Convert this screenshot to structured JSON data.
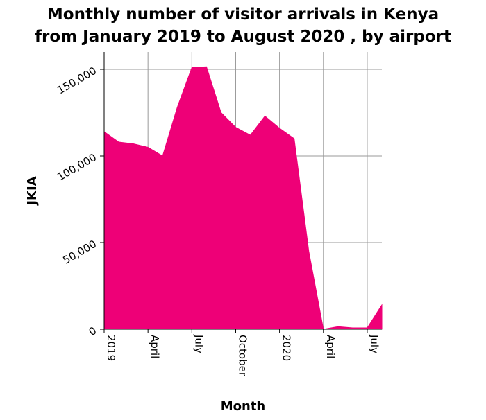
{
  "chart_data": {
    "type": "area",
    "title_lines": [
      "Monthly number of visitor arrivals in Kenya",
      "from January 2019 to August 2020 , by airport"
    ],
    "xlabel": "Month",
    "ylabel": "JKIA",
    "x": [
      "2019-01",
      "2019-02",
      "2019-03",
      "2019-04",
      "2019-05",
      "2019-06",
      "2019-07",
      "2019-08",
      "2019-09",
      "2019-10",
      "2019-11",
      "2019-12",
      "2020-01",
      "2020-02",
      "2020-03",
      "2020-04",
      "2020-05",
      "2020-06",
      "2020-07",
      "2020-08"
    ],
    "values": [
      114000,
      108000,
      107000,
      105000,
      100000,
      128000,
      151000,
      151500,
      125000,
      116500,
      112000,
      123000,
      116000,
      110000,
      45000,
      0,
      1500,
      800,
      800,
      14000
    ],
    "ylim": [
      0,
      160000
    ],
    "yticks": [
      {
        "value": 0,
        "label": "0"
      },
      {
        "value": 50000,
        "label": "50,000"
      },
      {
        "value": 100000,
        "label": "100,000"
      },
      {
        "value": 150000,
        "label": "150,000"
      }
    ],
    "xticks": [
      {
        "index": 0,
        "label": "2019"
      },
      {
        "index": 3,
        "label": "April"
      },
      {
        "index": 6,
        "label": "July"
      },
      {
        "index": 9,
        "label": "October"
      },
      {
        "index": 12,
        "label": "2020"
      },
      {
        "index": 15,
        "label": "April"
      },
      {
        "index": 18,
        "label": "July"
      }
    ],
    "fill_color": "#ee0077",
    "grid": true
  }
}
